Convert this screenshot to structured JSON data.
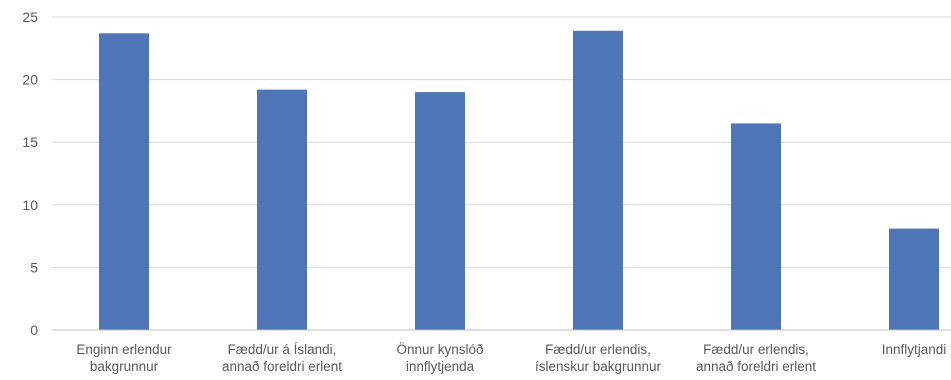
{
  "chart_data": {
    "type": "bar",
    "categories": [
      [
        "Enginn erlendur",
        "bakgrunnur"
      ],
      [
        "Fædd/ur á Íslandi,",
        "annað foreldri erlent"
      ],
      [
        "Önnur kynslóð",
        "innflytjenda"
      ],
      [
        "Fædd/ur erlendis,",
        "íslenskur bakgrunnur"
      ],
      [
        "Fædd/ur erlendis,",
        "annað foreldri erlent"
      ],
      [
        "Innflytjandi"
      ]
    ],
    "values": [
      23.7,
      19.2,
      19.0,
      23.9,
      16.5,
      8.1
    ],
    "ylim": [
      0,
      25
    ],
    "yticks": [
      "0",
      "5",
      "10",
      "15",
      "20",
      "25"
    ],
    "grid": true,
    "legend": "none",
    "colors": {
      "bar": "#4e75b6",
      "grid": "#d9d9d9",
      "axis": "#bfbfbf",
      "text": "#595959"
    }
  }
}
